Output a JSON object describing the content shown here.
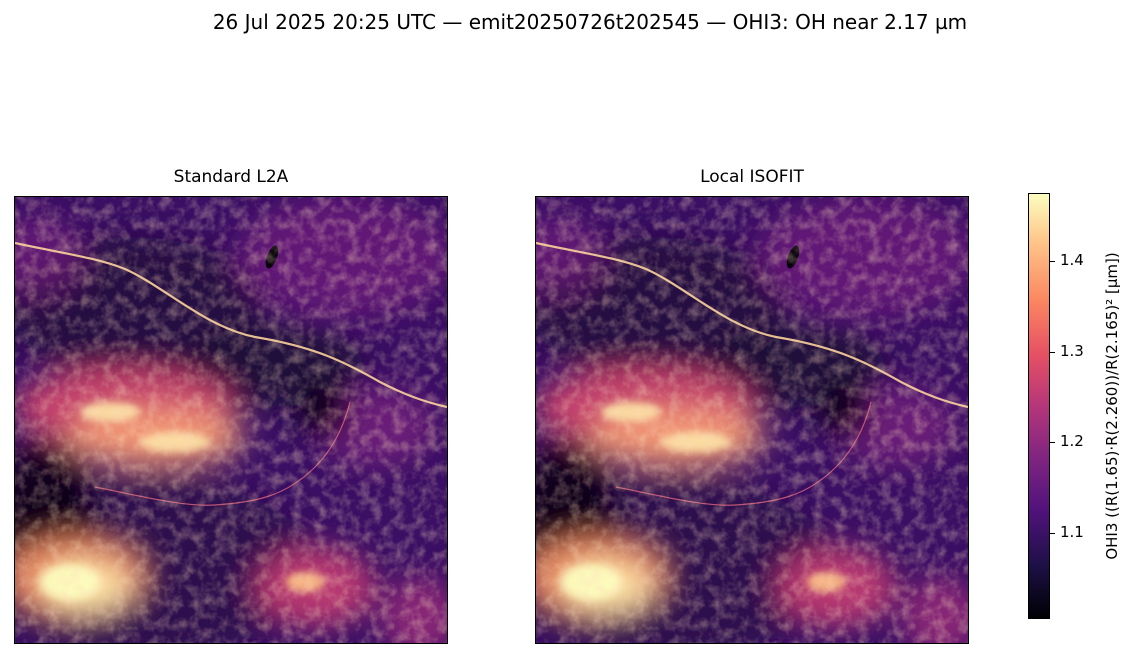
{
  "figure": {
    "suptitle": "26 Jul 2025 20:25 UTC — emit20250726t202545 — OHI3: OH near 2.17 µm"
  },
  "chart_data": {
    "type": "heatmap",
    "panels": [
      {
        "title": "Standard L2A"
      },
      {
        "title": "Local ISOFIT"
      }
    ],
    "colormap": "magma",
    "colorbar": {
      "label": "OHI3  ((R(1.65)·R(2.260))/R(2.165)²  [µm])",
      "range": [
        1.005,
        1.475
      ],
      "ticks": [
        1.1,
        1.2,
        1.3,
        1.4
      ],
      "tick_labels": [
        "1.1",
        "1.2",
        "1.3",
        "1.4"
      ]
    },
    "axes_ticks_visible": false
  }
}
